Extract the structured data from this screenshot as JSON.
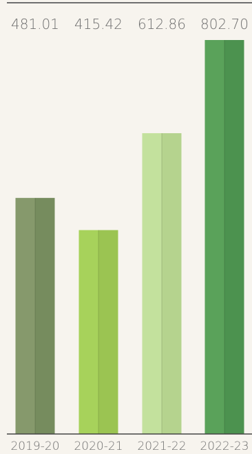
{
  "chart_data": {
    "type": "bar",
    "categories": [
      "2019-20",
      "2020-21",
      "2021-22",
      "2022-23"
    ],
    "values": [
      481.01,
      415.42,
      612.86,
      802.7
    ],
    "value_labels": [
      "481.01",
      "415.42",
      "612.86",
      "802.70"
    ],
    "title": "",
    "xlabel": "",
    "ylabel": "",
    "ylim": [
      0,
      802.7
    ],
    "grid": false,
    "legend": "none",
    "colors": [
      {
        "left": "#86996c",
        "right": "#768c5e"
      },
      {
        "left": "#a7d25b",
        "right": "#9bc452"
      },
      {
        "left": "#c3e19d",
        "right": "#b5d38e"
      },
      {
        "left": "#5aa25a",
        "right": "#4c924f"
      }
    ],
    "top_rule_color": "#6f6f6f",
    "axis_color": "#444444"
  }
}
